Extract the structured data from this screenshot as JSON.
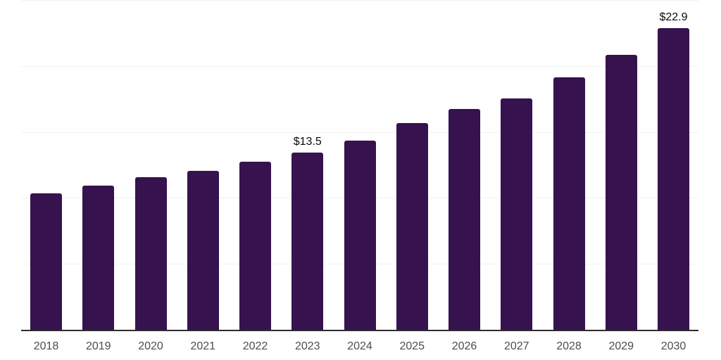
{
  "chart_data": {
    "type": "bar",
    "title": "",
    "xlabel": "",
    "ylabel": "",
    "categories": [
      "2018",
      "2019",
      "2020",
      "2021",
      "2022",
      "2023",
      "2024",
      "2025",
      "2026",
      "2027",
      "2028",
      "2029",
      "2030"
    ],
    "values": [
      10.4,
      11.0,
      11.6,
      12.1,
      12.8,
      13.5,
      14.4,
      15.7,
      16.8,
      17.6,
      19.2,
      20.9,
      22.9
    ],
    "data_labels": [
      "",
      "",
      "",
      "",
      "",
      "$13.5",
      "",
      "",
      "",
      "",
      "",
      "",
      "$22.9"
    ],
    "ylim": [
      0,
      25
    ],
    "gridline_values": [
      5,
      10,
      15,
      20,
      25
    ],
    "grid": "horizontal",
    "legend_position": "none",
    "colors": {
      "bar": "#36124E",
      "grid": "#f1f1f1",
      "axis": "#2d2d2d",
      "tick_label": "#4d4d4d",
      "data_label": "#0a0a0a",
      "background": "#ffffff"
    }
  }
}
